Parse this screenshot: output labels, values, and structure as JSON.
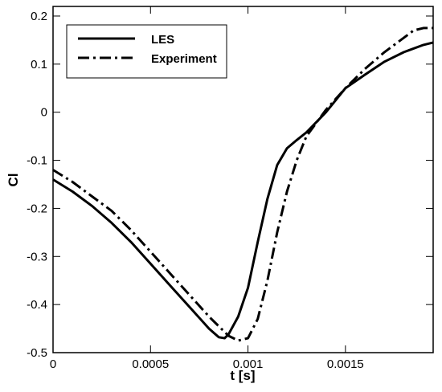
{
  "chart_data": {
    "type": "line",
    "title": "",
    "xlabel": "t [s]",
    "ylabel": "Cl",
    "xlim": [
      0,
      0.00195
    ],
    "ylim": [
      -0.5,
      0.22
    ],
    "xticks": [
      0,
      0.0005,
      0.001,
      0.0015
    ],
    "xtick_labels": [
      "0",
      "0.0005",
      "0.001",
      "0.0015"
    ],
    "yticks": [
      -0.5,
      -0.4,
      -0.3,
      -0.2,
      -0.1,
      0,
      0.1,
      0.2
    ],
    "ytick_labels": [
      "-0.5",
      "-0.4",
      "-0.3",
      "-0.2",
      "-0.1",
      "0",
      "0.1",
      "0.2"
    ],
    "grid": false,
    "legend_position": "top-left",
    "series": [
      {
        "name": "LES",
        "style": "solid",
        "color": "#000000",
        "x": [
          0,
          0.0001,
          0.0002,
          0.0003,
          0.0004,
          0.0005,
          0.0006,
          0.0007,
          0.0008,
          0.00085,
          0.00088,
          0.0009,
          0.00095,
          0.001,
          0.00105,
          0.0011,
          0.00115,
          0.0012,
          0.00125,
          0.0013,
          0.0014,
          0.0015,
          0.0016,
          0.0017,
          0.0018,
          0.0019,
          0.00195
        ],
        "y": [
          -0.14,
          -0.165,
          -0.195,
          -0.23,
          -0.27,
          -0.315,
          -0.36,
          -0.405,
          -0.45,
          -0.468,
          -0.47,
          -0.462,
          -0.425,
          -0.365,
          -0.27,
          -0.18,
          -0.11,
          -0.075,
          -0.058,
          -0.042,
          0.0,
          0.05,
          0.078,
          0.105,
          0.125,
          0.14,
          0.145
        ]
      },
      {
        "name": "Experiment",
        "style": "dashdot",
        "color": "#000000",
        "x": [
          0,
          0.0001,
          0.0002,
          0.0003,
          0.0004,
          0.0005,
          0.0006,
          0.0007,
          0.0008,
          0.00085,
          0.0009,
          0.00095,
          0.001,
          0.00105,
          0.0011,
          0.00115,
          0.0012,
          0.00125,
          0.0013,
          0.0014,
          0.0015,
          0.0016,
          0.0017,
          0.0018,
          0.00185,
          0.0019,
          0.00195
        ],
        "y": [
          -0.12,
          -0.145,
          -0.175,
          -0.205,
          -0.245,
          -0.29,
          -0.335,
          -0.38,
          -0.425,
          -0.445,
          -0.465,
          -0.475,
          -0.47,
          -0.43,
          -0.35,
          -0.25,
          -0.165,
          -0.1,
          -0.05,
          0.005,
          0.05,
          0.09,
          0.125,
          0.155,
          0.17,
          0.175,
          0.175
        ]
      }
    ]
  }
}
